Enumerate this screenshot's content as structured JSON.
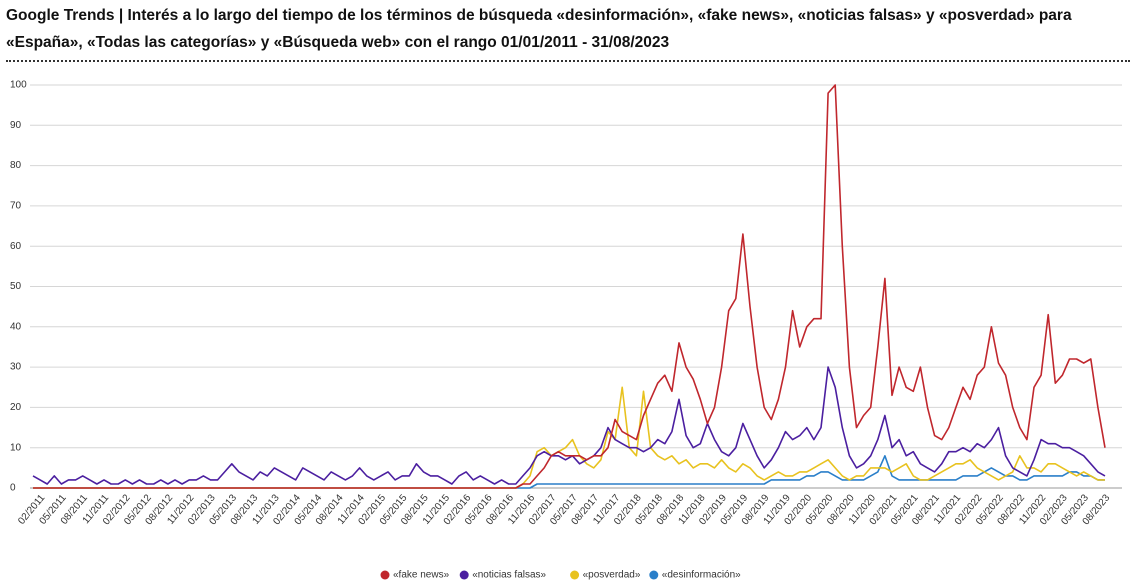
{
  "chart_data": {
    "type": "line",
    "title": "Google Trends | Interés a lo largo del tiempo de los términos de búsqueda «desinformación», «fake news», «noticias falsas» y «posverdad» para «España», «Todas las categorías» y «Búsqueda web» con el rango 01/01/2011 - 31/08/2023",
    "categories": [
      null,
      "02/2011",
      null,
      null,
      "05/2011",
      null,
      null,
      "08/2011",
      null,
      null,
      "11/2011",
      null,
      null,
      "02/2012",
      null,
      null,
      "05/2012",
      null,
      null,
      "08/2012",
      null,
      null,
      "11/2012",
      null,
      null,
      "02/2013",
      null,
      null,
      "05/2013",
      null,
      null,
      "08/2013",
      null,
      null,
      "11/2013",
      null,
      null,
      "02/2014",
      null,
      null,
      "05/2014",
      null,
      null,
      "08/2014",
      null,
      null,
      "11/2014",
      null,
      null,
      "02/2015",
      null,
      null,
      "05/2015",
      null,
      null,
      "08/2015",
      null,
      null,
      "11/2015",
      null,
      null,
      "02/2016",
      null,
      null,
      "05/2016",
      null,
      null,
      "08/2016",
      null,
      null,
      "11/2016",
      null,
      null,
      "02/2017",
      null,
      null,
      "05/2017",
      null,
      null,
      "08/2017",
      null,
      null,
      "11/2017",
      null,
      null,
      "02/2018",
      null,
      null,
      "05/2018",
      null,
      null,
      "08/2018",
      null,
      null,
      "11/2018",
      null,
      null,
      "02/2019",
      null,
      null,
      "05/2019",
      null,
      null,
      "08/2019",
      null,
      null,
      "11/2019",
      null,
      null,
      "02/2020",
      null,
      null,
      "05/2020",
      null,
      null,
      "08/2020",
      null,
      null,
      "11/2020",
      null,
      null,
      "02/2021",
      null,
      null,
      "05/2021",
      null,
      null,
      "08/2021",
      null,
      null,
      "11/2021",
      null,
      null,
      "02/2022",
      null,
      null,
      "05/2022",
      null,
      null,
      "08/2022",
      null,
      null,
      "11/2022",
      null,
      null,
      "02/2023",
      null,
      null,
      "05/2023",
      null,
      null,
      "08/2023"
    ],
    "series": [
      {
        "name": "«fake news»",
        "color": "#c0272d",
        "values": [
          0,
          0,
          0,
          0,
          0,
          0,
          0,
          0,
          0,
          0,
          0,
          0,
          0,
          0,
          0,
          0,
          0,
          0,
          0,
          0,
          0,
          0,
          0,
          0,
          0,
          0,
          0,
          0,
          0,
          0,
          0,
          0,
          0,
          0,
          0,
          0,
          0,
          0,
          0,
          0,
          0,
          0,
          0,
          0,
          0,
          0,
          0,
          0,
          0,
          0,
          0,
          0,
          0,
          0,
          0,
          0,
          0,
          0,
          0,
          0,
          0,
          0,
          0,
          0,
          0,
          0,
          0,
          0,
          0,
          1,
          1,
          3,
          5,
          8,
          9,
          8,
          8,
          8,
          7,
          8,
          8,
          10,
          17,
          14,
          13,
          12,
          18,
          22,
          26,
          28,
          24,
          36,
          30,
          27,
          22,
          16,
          20,
          30,
          44,
          47,
          63,
          45,
          30,
          20,
          17,
          22,
          30,
          44,
          35,
          40,
          42,
          42,
          98,
          100,
          60,
          30,
          15,
          18,
          20,
          35,
          52,
          23,
          30,
          25,
          24,
          30,
          20,
          13,
          12,
          15,
          20,
          25,
          22,
          28,
          30,
          40,
          31,
          28,
          20,
          15,
          12,
          25,
          28,
          43,
          26,
          28,
          32,
          32,
          31,
          32,
          20,
          10
        ]
      },
      {
        "name": "«noticias falsas»",
        "color": "#4b1fa0",
        "values": [
          3,
          2,
          1,
          3,
          1,
          2,
          2,
          3,
          2,
          1,
          2,
          1,
          1,
          2,
          1,
          2,
          1,
          1,
          2,
          1,
          2,
          1,
          2,
          2,
          3,
          2,
          2,
          4,
          6,
          4,
          3,
          2,
          4,
          3,
          5,
          4,
          3,
          2,
          5,
          4,
          3,
          2,
          4,
          3,
          2,
          3,
          5,
          3,
          2,
          3,
          4,
          2,
          3,
          3,
          6,
          4,
          3,
          3,
          2,
          1,
          3,
          4,
          2,
          3,
          2,
          1,
          2,
          1,
          1,
          3,
          5,
          8,
          9,
          8,
          8,
          7,
          8,
          6,
          7,
          8,
          10,
          15,
          12,
          11,
          10,
          10,
          9,
          10,
          12,
          11,
          14,
          22,
          13,
          10,
          11,
          16,
          12,
          9,
          8,
          10,
          16,
          12,
          8,
          5,
          7,
          10,
          14,
          12,
          13,
          15,
          12,
          15,
          30,
          25,
          15,
          8,
          5,
          6,
          8,
          12,
          18,
          10,
          12,
          8,
          9,
          6,
          5,
          4,
          6,
          9,
          9,
          10,
          9,
          11,
          10,
          12,
          15,
          8,
          5,
          4,
          3,
          7,
          12,
          11,
          11,
          10,
          10,
          9,
          8,
          6,
          4,
          3
        ]
      },
      {
        "name": "«posverdad»",
        "color": "#e8c21f",
        "values": [
          0,
          0,
          0,
          0,
          0,
          0,
          0,
          0,
          0,
          0,
          0,
          0,
          0,
          0,
          0,
          0,
          0,
          0,
          0,
          0,
          0,
          0,
          0,
          0,
          0,
          0,
          0,
          0,
          0,
          0,
          0,
          0,
          0,
          0,
          0,
          0,
          0,
          0,
          0,
          0,
          0,
          0,
          0,
          0,
          0,
          0,
          0,
          0,
          0,
          0,
          0,
          0,
          0,
          0,
          0,
          0,
          0,
          0,
          0,
          0,
          0,
          0,
          0,
          0,
          0,
          0,
          0,
          0,
          0,
          1,
          3,
          9,
          10,
          8,
          9,
          10,
          12,
          8,
          6,
          5,
          7,
          14,
          12,
          25,
          10,
          8,
          24,
          10,
          8,
          7,
          8,
          6,
          7,
          5,
          6,
          6,
          5,
          7,
          5,
          4,
          6,
          5,
          3,
          2,
          3,
          4,
          3,
          3,
          4,
          4,
          5,
          6,
          7,
          5,
          3,
          2,
          3,
          3,
          5,
          5,
          5,
          4,
          5,
          6,
          3,
          2,
          2,
          3,
          4,
          5,
          6,
          6,
          7,
          5,
          4,
          3,
          2,
          3,
          4,
          8,
          5,
          5,
          4,
          6,
          6,
          5,
          4,
          3,
          4,
          3,
          2,
          2
        ]
      },
      {
        "name": "«desinformación»",
        "color": "#2a7fc9",
        "values": [
          0,
          0,
          0,
          0,
          0,
          0,
          0,
          0,
          0,
          0,
          0,
          0,
          0,
          0,
          0,
          0,
          0,
          0,
          0,
          0,
          0,
          0,
          0,
          0,
          0,
          0,
          0,
          0,
          0,
          0,
          0,
          0,
          0,
          0,
          0,
          0,
          0,
          0,
          0,
          0,
          0,
          0,
          0,
          0,
          0,
          0,
          0,
          0,
          0,
          0,
          0,
          0,
          0,
          0,
          0,
          0,
          0,
          0,
          0,
          0,
          0,
          0,
          0,
          0,
          0,
          0,
          0,
          0,
          0,
          0,
          0,
          1,
          1,
          1,
          1,
          1,
          1,
          1,
          1,
          1,
          1,
          1,
          1,
          1,
          1,
          1,
          1,
          1,
          1,
          1,
          1,
          1,
          1,
          1,
          1,
          1,
          1,
          1,
          1,
          1,
          1,
          1,
          1,
          1,
          2,
          2,
          2,
          2,
          2,
          3,
          3,
          4,
          4,
          3,
          2,
          2,
          2,
          2,
          3,
          4,
          8,
          3,
          2,
          2,
          2,
          2,
          2,
          2,
          2,
          2,
          2,
          3,
          3,
          3,
          4,
          5,
          4,
          3,
          3,
          2,
          2,
          3,
          3,
          3,
          3,
          3,
          4,
          4,
          3,
          3,
          2,
          2
        ]
      }
    ],
    "ylim": [
      0,
      100
    ],
    "yticks": [
      0,
      10,
      20,
      30,
      40,
      50,
      60,
      70,
      80,
      90,
      100
    ],
    "grid": true,
    "legend": "bottom"
  }
}
